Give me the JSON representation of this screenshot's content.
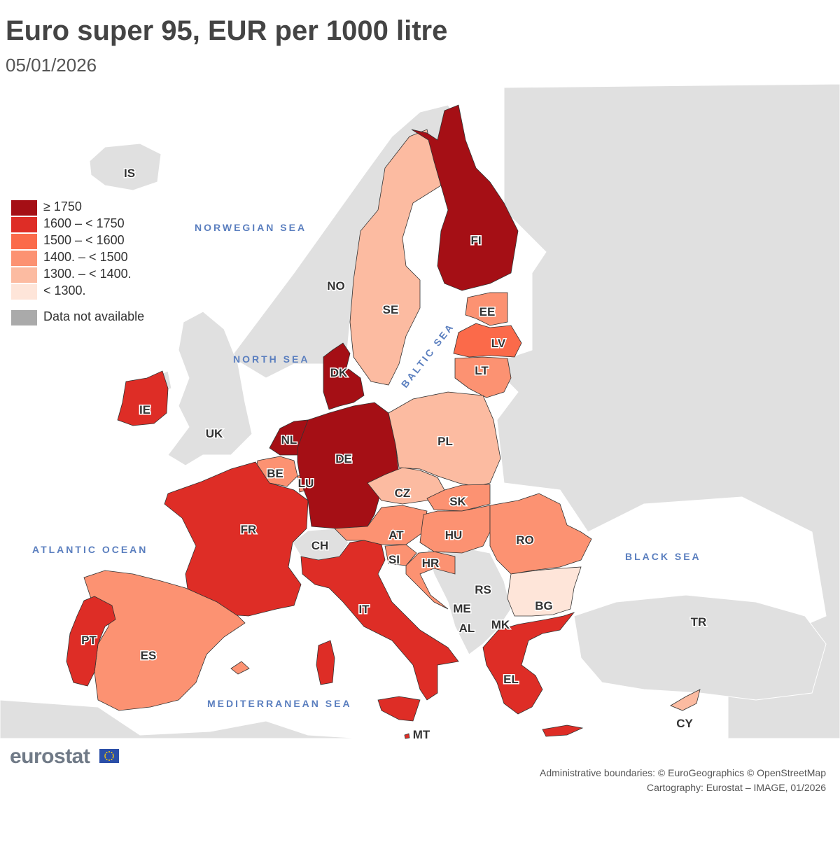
{
  "title": "Euro super 95, EUR per 1000 litre",
  "subtitle": "05/01/2026",
  "colors": {
    "c1750": "#a50f15",
    "c1600": "#de2d26",
    "c1500": "#fb6a4a",
    "c1400": "#fc9272",
    "c1300": "#fcbba1",
    "c0": "#fee5d9",
    "na": "#aaaaaa",
    "land": "#e0e0e0",
    "sea": "#ffffff",
    "sea_label": "#5b7fbf"
  },
  "legend": [
    {
      "label": "≥ 1750",
      "color": "#a50f15"
    },
    {
      "label": "1600 – < 1750",
      "color": "#de2d26"
    },
    {
      "label": "1500 – < 1600",
      "color": "#fb6a4a"
    },
    {
      "label": "1400. – < 1500",
      "color": "#fc9272"
    },
    {
      "label": "1300. – < 1400.",
      "color": "#fcbba1"
    },
    {
      "label": "< 1300.",
      "color": "#fee5d9"
    }
  ],
  "legend_na": {
    "label": "Data not available",
    "color": "#aaaaaa"
  },
  "countries": {
    "IS": {
      "code": "IS",
      "category": "none"
    },
    "NO": {
      "code": "NO",
      "category": "none"
    },
    "SE": {
      "code": "SE",
      "category": "1300 – < 1400"
    },
    "FI": {
      "code": "FI",
      "category": "≥ 1750"
    },
    "EE": {
      "code": "EE",
      "category": "1400 – < 1500"
    },
    "LV": {
      "code": "LV",
      "category": "1500 – < 1600"
    },
    "LT": {
      "code": "LT",
      "category": "1400 – < 1500"
    },
    "DK": {
      "code": "DK",
      "category": "≥ 1750"
    },
    "IE": {
      "code": "IE",
      "category": "1600 – < 1750"
    },
    "UK": {
      "code": "UK",
      "category": "none"
    },
    "NL": {
      "code": "NL",
      "category": "≥ 1750"
    },
    "BE": {
      "code": "BE",
      "category": "1400 – < 1500"
    },
    "LU": {
      "code": "LU",
      "category": "1400 – < 1500"
    },
    "DE": {
      "code": "DE",
      "category": "≥ 1750"
    },
    "PL": {
      "code": "PL",
      "category": "1300 – < 1400"
    },
    "CZ": {
      "code": "CZ",
      "category": "1300 – < 1400"
    },
    "SK": {
      "code": "SK",
      "category": "1400 – < 1500"
    },
    "AT": {
      "code": "AT",
      "category": "1400 – < 1500"
    },
    "HU": {
      "code": "HU",
      "category": "1400 – < 1500"
    },
    "RO": {
      "code": "RO",
      "category": "1400 – < 1500"
    },
    "FR": {
      "code": "FR",
      "category": "1600 – < 1750"
    },
    "CH": {
      "code": "CH",
      "category": "none"
    },
    "SI": {
      "code": "SI",
      "category": "1400 – < 1500"
    },
    "HR": {
      "code": "HR",
      "category": "1400 – < 1500"
    },
    "RS": {
      "code": "RS",
      "category": "none"
    },
    "ME": {
      "code": "ME",
      "category": "none"
    },
    "AL": {
      "code": "AL",
      "category": "none"
    },
    "MK": {
      "code": "MK",
      "category": "none"
    },
    "BG": {
      "code": "BG",
      "category": "< 1300"
    },
    "IT": {
      "code": "IT",
      "category": "1600 – < 1750"
    },
    "PT": {
      "code": "PT",
      "category": "1600 – < 1750"
    },
    "ES": {
      "code": "ES",
      "category": "1400 – < 1500"
    },
    "EL": {
      "code": "EL",
      "category": "1600 – < 1750"
    },
    "TR": {
      "code": "TR",
      "category": "none"
    },
    "CY": {
      "code": "CY",
      "category": "1300 – < 1400"
    },
    "MT": {
      "code": "MT",
      "category": "1600 – < 1750"
    }
  },
  "seas": {
    "norwegian": "NORWEGIAN SEA",
    "north": "NORTH SEA",
    "baltic": "BALTIC SEA",
    "atlantic": "ATLANTIC OCEAN",
    "black": "BLACK SEA",
    "mediterranean": "MEDITERRANEAN SEA"
  },
  "logo": "eurostat",
  "credits": {
    "line1": "Administrative boundaries: © EuroGeographics © OpenStreetMap",
    "line2": "Cartography: Eurostat – IMAGE, 01/2026"
  }
}
